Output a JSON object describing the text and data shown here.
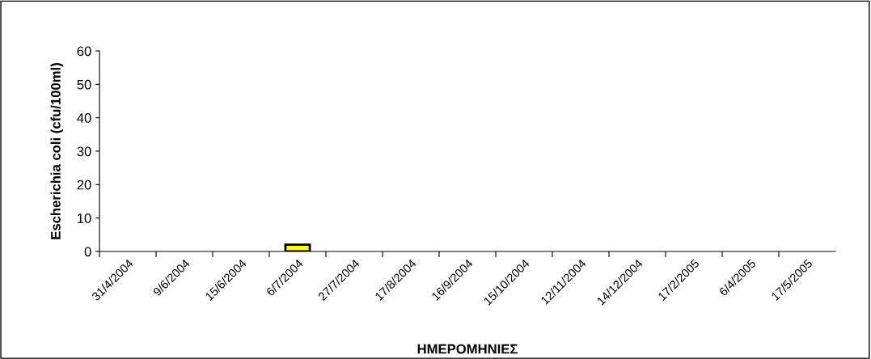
{
  "chart_data": {
    "type": "bar",
    "xlabel": "ΗΜΕΡΟΜΗΝΙΕΣ",
    "ylabel": "Escherichia coli (cfu/100ml)",
    "categories": [
      "31/4/2004",
      "9/6/2004",
      "15/6/2004",
      "6/7/2004",
      "27/7/2004",
      "17/8/2004",
      "16/9/2004",
      "15/10/2004",
      "12/11/2004",
      "14/12/2004",
      "17/2/2005",
      "6/4/2005",
      "17/5/2005"
    ],
    "values": [
      0,
      0,
      0,
      2,
      0,
      0,
      0,
      0,
      0,
      0,
      0,
      0,
      0
    ],
    "color": "#ffff00",
    "ylim": [
      0,
      60
    ],
    "yticks": [
      0,
      10,
      20,
      30,
      40,
      50,
      60
    ],
    "grid": false,
    "legend": false
  }
}
